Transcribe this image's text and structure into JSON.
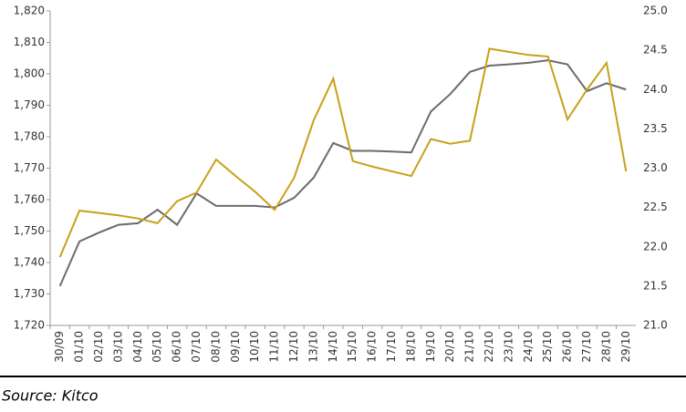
{
  "chart_data": {
    "type": "line",
    "source": "Source: Kitco",
    "categories": [
      "30/09",
      "01/10",
      "02/10",
      "03/10",
      "04/10",
      "05/10",
      "06/10",
      "07/10",
      "08/10",
      "09/10",
      "10/10",
      "11/10",
      "12/10",
      "13/10",
      "14/10",
      "15/10",
      "16/10",
      "17/10",
      "18/10",
      "19/10",
      "20/10",
      "21/10",
      "22/10",
      "23/10",
      "24/10",
      "25/10",
      "26/10",
      "27/10",
      "28/10",
      "29/10"
    ],
    "series": [
      {
        "color": "#6d6a6a",
        "values": [
          1732.5,
          1746.7,
          1749.5,
          1752,
          1752.5,
          1756.8,
          1752,
          1762,
          1758,
          1758,
          1758,
          1757.5,
          1760.6,
          1767,
          1778,
          1775.5,
          1775.5,
          1775.3,
          1775,
          1788,
          1793.6,
          1800.6,
          1802.6,
          1803,
          1803.5,
          1804.3,
          1803,
          1794.5,
          1797,
          1795
        ]
      },
      {
        "color": "#c8a018",
        "axis": "y2",
        "values": [
          21.87,
          22.46,
          22.43,
          22.4,
          22.36,
          22.3,
          22.58,
          22.69,
          23.11,
          22.9,
          22.7,
          22.47,
          22.88,
          23.61,
          24.14,
          23.09,
          23.02,
          22.96,
          22.9,
          23.37,
          23.31,
          23.35,
          24.52,
          24.48,
          24.44,
          24.42,
          23.62,
          24.0,
          24.34,
          22.96
        ]
      }
    ],
    "ylim": [
      1720,
      1820
    ],
    "yticks": [
      {
        "value": 1720,
        "label": "1,720"
      },
      {
        "value": 1730,
        "label": "1,730"
      },
      {
        "value": 1740,
        "label": "1,740"
      },
      {
        "value": 1750,
        "label": "1,750"
      },
      {
        "value": 1760,
        "label": "1,760"
      },
      {
        "value": 1770,
        "label": "1,770"
      },
      {
        "value": 1780,
        "label": "1,780"
      },
      {
        "value": 1790,
        "label": "1,790"
      },
      {
        "value": 1800,
        "label": "1,800"
      },
      {
        "value": 1810,
        "label": "1,810"
      },
      {
        "value": 1820,
        "label": "1,820"
      }
    ],
    "y2lim": [
      21,
      25
    ],
    "y2ticks": [
      {
        "value": 21,
        "label": "21.0"
      },
      21.5,
      {
        "value": 22,
        "label": "22.0"
      },
      22.5,
      {
        "value": 23,
        "label": "23.0"
      },
      23.5,
      {
        "value": 24,
        "label": "24.0"
      },
      24.5,
      {
        "value": 25,
        "label": "25.0"
      }
    ]
  }
}
